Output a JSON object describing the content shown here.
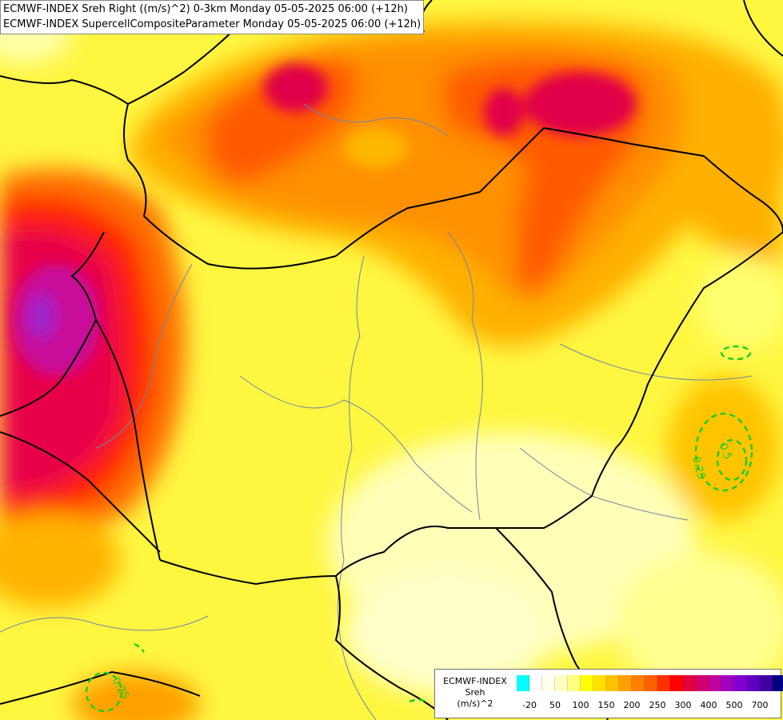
{
  "title": {
    "line1": "ECMWF-INDEX Sreh Right ((m/s)^2) 0-3km Monday 05-05-2025 06:00 (+12h)",
    "line2": "ECMWF-INDEX SupercellCompositeParameter Monday 05-05-2025 06:00 (+12h)"
  },
  "legend": {
    "name": "ECMWF-INDEX",
    "variable": "Sreh",
    "unit": "(m/s)^2",
    "colors": [
      "#00ffff",
      "#ffffff",
      "#fffff0",
      "#ffffc0",
      "#ffff80",
      "#ffff00",
      "#ffe000",
      "#ffc000",
      "#ffa000",
      "#ff8000",
      "#ff6000",
      "#ff3000",
      "#ff0000",
      "#e00040",
      "#d00070",
      "#c000a0",
      "#a000c0",
      "#8000d0",
      "#6000c0",
      "#4000a0",
      "#000080"
    ],
    "ticks": [
      "-20",
      "50",
      "100",
      "150",
      "200",
      "250",
      "300",
      "400",
      "500",
      "700"
    ]
  },
  "contours": {
    "labels": [
      "0.5",
      "0.25",
      "0.25"
    ],
    "color": "#22cc22"
  }
}
